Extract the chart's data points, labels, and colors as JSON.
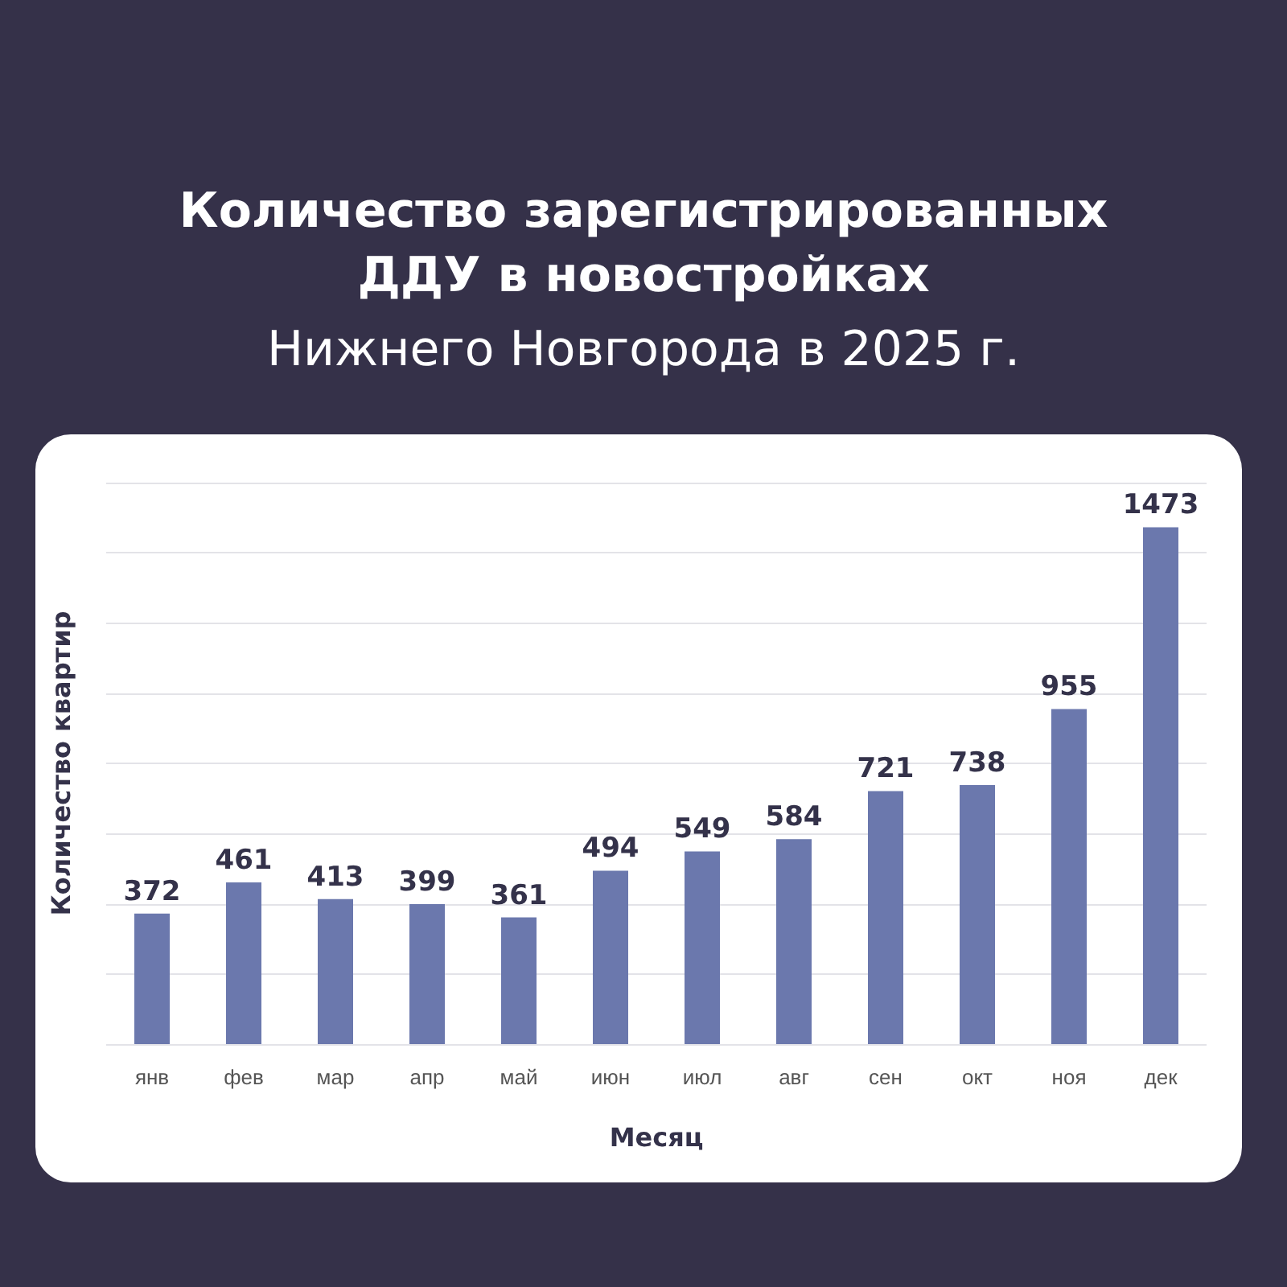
{
  "chart_data": {
    "type": "bar",
    "title": "Количество зарегистрированных ДДУ в новостройках",
    "subtitle": "Нижнего Новгорода в 2025 г.",
    "xlabel": "Месяц",
    "ylabel": "Количество квартир",
    "categories": [
      "янв",
      "фев",
      "мар",
      "апр",
      "май",
      "июн",
      "июл",
      "авг",
      "сен",
      "окт",
      "ноя",
      "дек"
    ],
    "values": [
      372,
      461,
      413,
      399,
      361,
      494,
      549,
      584,
      721,
      738,
      955,
      1473
    ],
    "color": "#6b78ad",
    "data_labels": true,
    "grid": "y",
    "tick_labels": "x",
    "ylim": [
      0,
      1600
    ],
    "yticks": [
      {
        "value": 0,
        "label": null
      },
      {
        "value": 200,
        "label": null
      },
      {
        "value": 400,
        "label": null
      },
      {
        "value": 600,
        "label": null
      },
      {
        "value": 800,
        "label": null
      },
      {
        "value": 1000,
        "label": null
      },
      {
        "value": 1200,
        "label": null
      },
      {
        "value": 1400,
        "label": null
      },
      {
        "value": 1600,
        "label": null
      }
    ]
  }
}
